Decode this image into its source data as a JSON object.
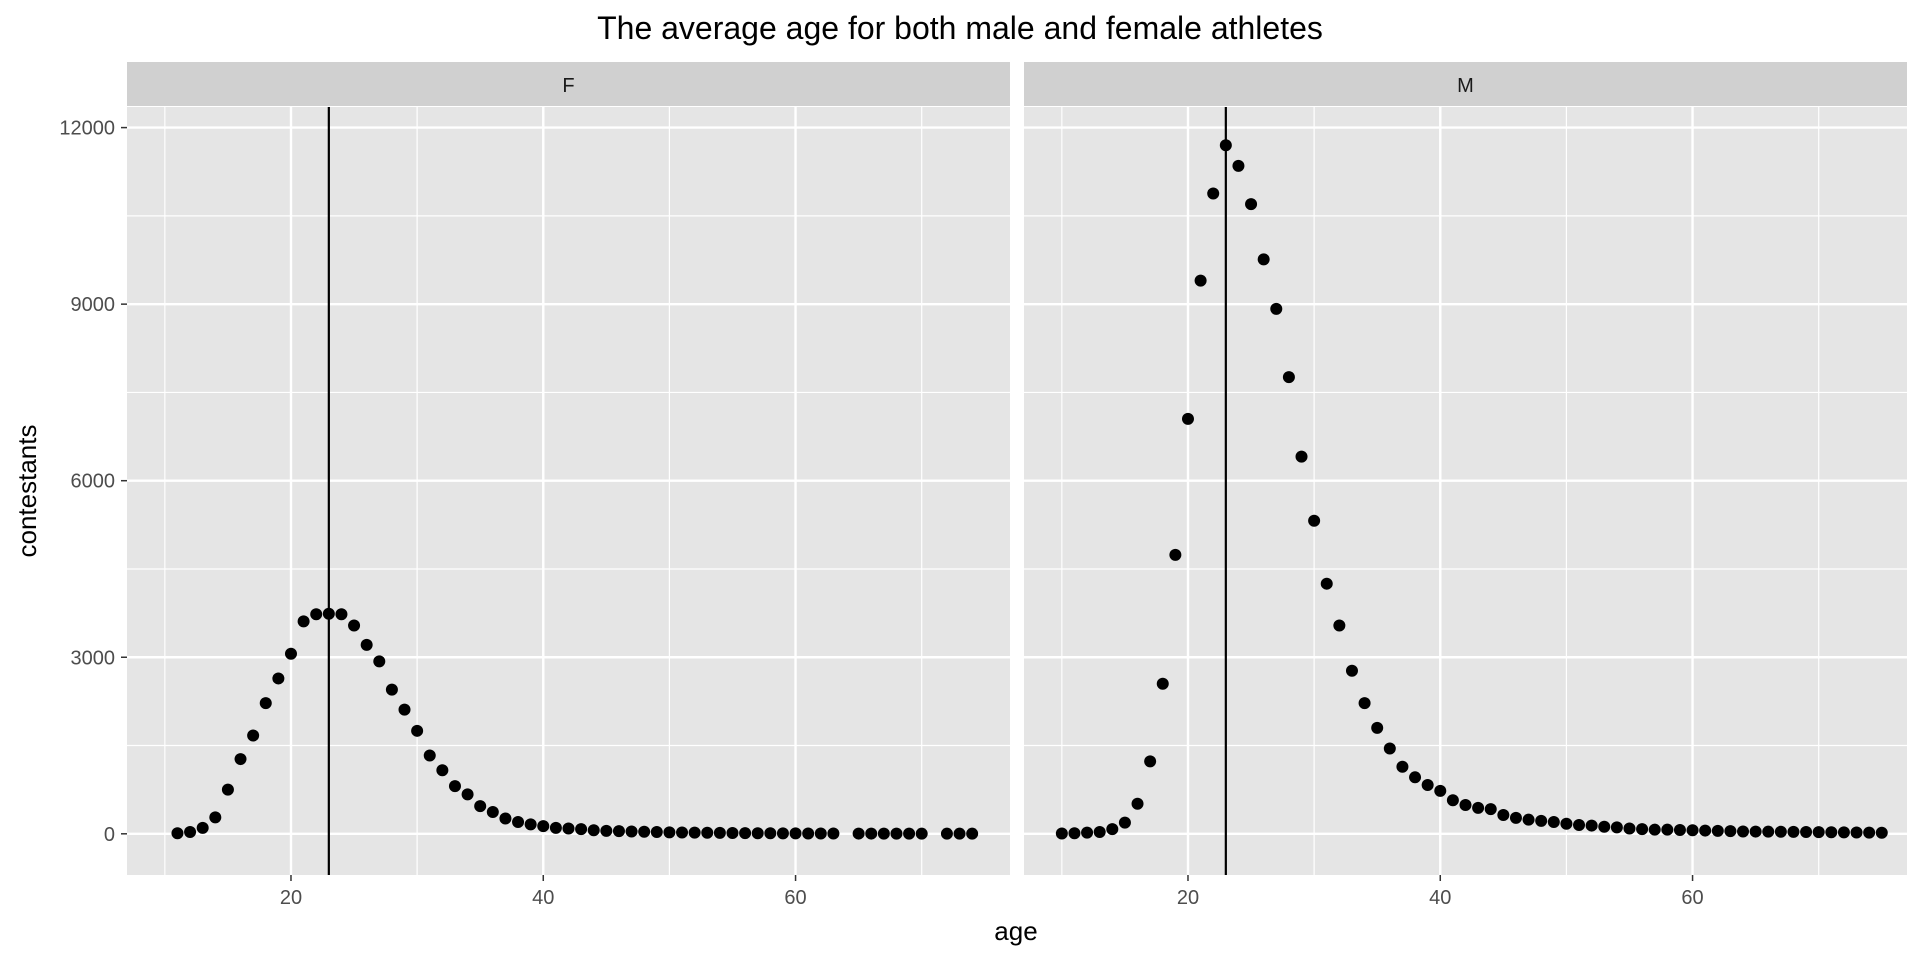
{
  "chart_data": {
    "type": "scatter",
    "title": "The average age for both male and female athletes",
    "xlabel": "age",
    "ylabel": "contestants",
    "xlim": [
      7,
      77
    ],
    "ylim": [
      -700,
      12350
    ],
    "xticks": [
      20,
      40,
      60
    ],
    "xtick_labels": [
      "20",
      "40",
      "60"
    ],
    "yticks": [
      0,
      3000,
      6000,
      9000,
      12000
    ],
    "ytick_labels": [
      "0",
      "3000",
      "6000",
      "9000",
      "12000"
    ],
    "grid": true,
    "legend": "none",
    "colors": {
      "panel_bg": "#e5e5e5",
      "strip_bg": "#d0d0d0",
      "grid": "#ffffff",
      "point": "#000000",
      "vline": "#000000"
    },
    "facets": [
      {
        "label": "F",
        "vline": 23,
        "x": [
          11,
          12,
          13,
          14,
          15,
          16,
          17,
          18,
          19,
          20,
          21,
          22,
          23,
          24,
          25,
          26,
          27,
          28,
          29,
          30,
          31,
          32,
          33,
          34,
          35,
          36,
          37,
          38,
          39,
          40,
          41,
          42,
          43,
          44,
          45,
          46,
          47,
          48,
          49,
          50,
          51,
          52,
          53,
          54,
          55,
          56,
          57,
          58,
          59,
          60,
          61,
          62,
          63,
          65,
          66,
          67,
          68,
          69,
          70,
          72,
          73,
          74
        ],
        "y": [
          10,
          30,
          100,
          280,
          750,
          1270,
          1670,
          2220,
          2640,
          3060,
          3610,
          3730,
          3740,
          3730,
          3540,
          3210,
          2930,
          2450,
          2110,
          1750,
          1330,
          1080,
          810,
          670,
          470,
          370,
          260,
          200,
          160,
          130,
          100,
          90,
          80,
          60,
          50,
          45,
          40,
          35,
          30,
          25,
          22,
          20,
          18,
          16,
          14,
          12,
          10,
          9,
          8,
          7,
          6,
          5,
          5,
          4,
          4,
          3,
          3,
          3,
          2,
          2,
          2,
          2
        ]
      },
      {
        "label": "M",
        "vline": 23,
        "x": [
          10,
          11,
          12,
          13,
          14,
          15,
          16,
          17,
          18,
          19,
          20,
          21,
          22,
          23,
          24,
          25,
          26,
          27,
          28,
          29,
          30,
          31,
          32,
          33,
          34,
          35,
          36,
          37,
          38,
          39,
          40,
          41,
          42,
          43,
          44,
          45,
          46,
          47,
          48,
          49,
          50,
          51,
          52,
          53,
          54,
          55,
          56,
          57,
          58,
          59,
          60,
          61,
          62,
          63,
          64,
          65,
          66,
          67,
          68,
          69,
          70,
          71,
          72,
          73,
          74,
          75
        ],
        "y": [
          5,
          10,
          20,
          30,
          80,
          190,
          510,
          1230,
          2550,
          4740,
          7050,
          9400,
          10880,
          11700,
          11350,
          10700,
          9760,
          8920,
          7760,
          6410,
          5320,
          4250,
          3540,
          2770,
          2220,
          1800,
          1450,
          1140,
          960,
          830,
          730,
          570,
          490,
          440,
          420,
          320,
          270,
          240,
          220,
          200,
          170,
          150,
          140,
          120,
          110,
          90,
          80,
          70,
          70,
          65,
          60,
          55,
          50,
          45,
          40,
          38,
          36,
          34,
          32,
          30,
          28,
          26,
          24,
          22,
          20,
          18
        ]
      }
    ]
  }
}
